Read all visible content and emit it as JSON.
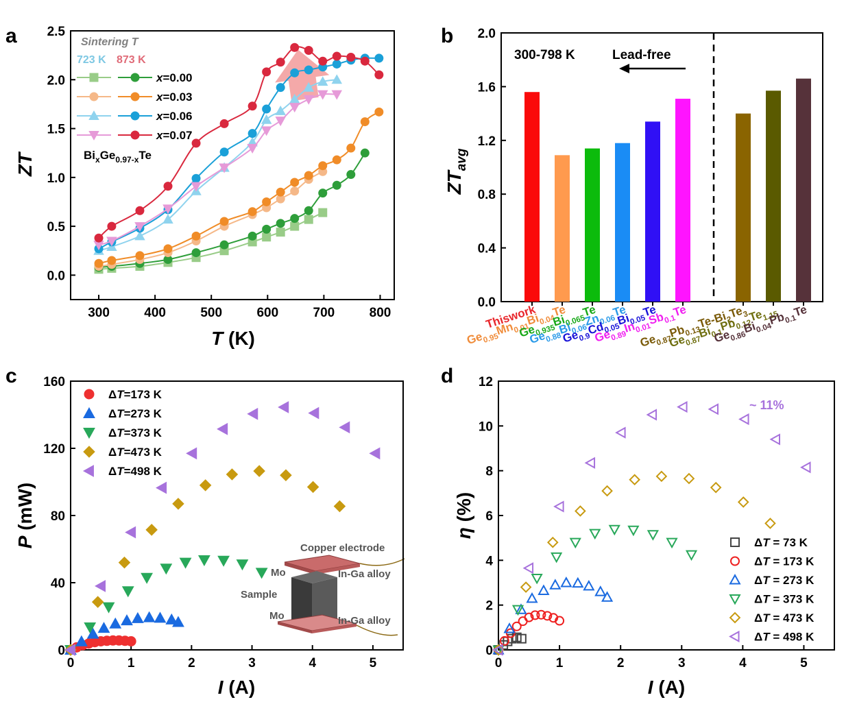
{
  "chart_data": [
    {
      "id": "a",
      "type": "line",
      "panel_label": "a",
      "xlabel": "T (K)",
      "ylabel": "ZT",
      "xlim": [
        250,
        825
      ],
      "ylim": [
        -0.25,
        2.5
      ],
      "xticks": [
        300,
        400,
        500,
        600,
        700,
        800
      ],
      "yticks": [
        0.0,
        0.5,
        1.0,
        1.5,
        2.0,
        2.5
      ],
      "legend_title": "Sintering T",
      "legend_temps": [
        {
          "label": "723 K",
          "color": "#7ec8e3"
        },
        {
          "label": "873 K",
          "color": "#e06b78"
        }
      ],
      "composition_label": "BixGe0.97-xTe",
      "series": [
        {
          "name": "x=0.00",
          "sintering": "723 K",
          "marker": "square",
          "color": "#99cc88",
          "x": [
            300,
            323,
            373,
            423,
            473,
            523,
            573,
            598,
            623,
            648,
            673,
            698
          ],
          "y": [
            0.06,
            0.07,
            0.09,
            0.13,
            0.18,
            0.25,
            0.34,
            0.39,
            0.44,
            0.5,
            0.57,
            0.64
          ]
        },
        {
          "name": "x=0.00",
          "sintering": "873 K",
          "marker": "circle",
          "color": "#2e9e3a",
          "x": [
            300,
            323,
            373,
            423,
            473,
            523,
            573,
            598,
            623,
            648,
            673,
            698,
            723,
            748,
            773
          ],
          "y": [
            0.08,
            0.09,
            0.12,
            0.16,
            0.23,
            0.31,
            0.4,
            0.47,
            0.53,
            0.58,
            0.66,
            0.84,
            0.92,
            1.03,
            1.25
          ]
        },
        {
          "name": "x=0.03",
          "sintering": "723 K",
          "marker": "circle",
          "color": "#f5b888",
          "x": [
            300,
            323,
            373,
            423,
            473,
            523,
            573,
            598,
            623,
            648,
            673,
            698
          ],
          "y": [
            0.09,
            0.11,
            0.16,
            0.23,
            0.35,
            0.5,
            0.62,
            0.69,
            0.78,
            0.86,
            0.98,
            1.06
          ]
        },
        {
          "name": "x=0.03",
          "sintering": "873 K",
          "marker": "circle",
          "color": "#f08c28",
          "x": [
            300,
            323,
            373,
            423,
            473,
            523,
            573,
            598,
            623,
            648,
            673,
            698,
            723,
            748,
            773,
            798
          ],
          "y": [
            0.12,
            0.15,
            0.2,
            0.27,
            0.4,
            0.55,
            0.65,
            0.75,
            0.85,
            0.95,
            1.02,
            1.12,
            1.18,
            1.3,
            1.57,
            1.67
          ]
        },
        {
          "name": "x=0.06",
          "sintering": "723 K",
          "marker": "triangle-up",
          "color": "#8fd3ee",
          "x": [
            300,
            323,
            373,
            423,
            473,
            523,
            573,
            598,
            623,
            648,
            673,
            698,
            723
          ],
          "y": [
            0.25,
            0.29,
            0.4,
            0.57,
            0.86,
            1.1,
            1.36,
            1.59,
            1.68,
            1.8,
            1.92,
            1.98,
            2.0
          ]
        },
        {
          "name": "x=0.06",
          "sintering": "873 K",
          "marker": "circle",
          "color": "#1aa0d8",
          "x": [
            300,
            323,
            373,
            423,
            473,
            523,
            573,
            598,
            623,
            648,
            673,
            698,
            723,
            748,
            773,
            798
          ],
          "y": [
            0.27,
            0.34,
            0.48,
            0.67,
            0.99,
            1.26,
            1.45,
            1.7,
            1.92,
            2.07,
            2.1,
            2.13,
            2.16,
            2.2,
            2.22,
            2.22
          ]
        },
        {
          "name": "x=0.07",
          "sintering": "723 K",
          "marker": "triangle-down",
          "color": "#e69ad8",
          "x": [
            300,
            323,
            373,
            423,
            473,
            523,
            573,
            598,
            623,
            648,
            673,
            698,
            723
          ],
          "y": [
            0.31,
            0.35,
            0.5,
            0.68,
            0.91,
            1.1,
            1.3,
            1.48,
            1.58,
            1.72,
            1.8,
            1.85,
            1.85
          ]
        },
        {
          "name": "x=0.07",
          "sintering": "873 K",
          "marker": "circle",
          "color": "#d9283e",
          "x": [
            300,
            323,
            373,
            423,
            473,
            523,
            573,
            598,
            623,
            648,
            673,
            698,
            723,
            748,
            773,
            798
          ],
          "y": [
            0.38,
            0.5,
            0.66,
            0.91,
            1.35,
            1.55,
            1.73,
            2.08,
            2.18,
            2.33,
            2.3,
            2.19,
            2.24,
            2.23,
            2.19,
            2.05
          ]
        }
      ]
    },
    {
      "id": "b",
      "type": "bar",
      "panel_label": "b",
      "ylabel": "ZTavg",
      "ylim": [
        0,
        2.0
      ],
      "yticks": [
        0.0,
        0.4,
        0.8,
        1.2,
        1.6,
        2.0
      ],
      "annotation_range": "300-798 K",
      "annotation_leadfree": "Lead-free",
      "categories": [
        {
          "label": "This work",
          "value": 1.56,
          "color": "#fa0a0a",
          "text_color": "#e8262b"
        },
        {
          "label": "Ge0.95Mn0.01Bi0.04Te",
          "value": 1.09,
          "color": "#ff9a4e",
          "text_color": "#f08c3a"
        },
        {
          "label": "Ge0.935Bi0.065Te",
          "value": 1.14,
          "color": "#0cbb0c",
          "text_color": "#18a818"
        },
        {
          "label": "Ge0.88Bi0.06Zn0.06Te",
          "value": 1.18,
          "color": "#1a8cf5",
          "text_color": "#2a9ae8"
        },
        {
          "label": "Ge0.9Cd0.05Bi0.05Te",
          "value": 1.34,
          "color": "#3010f5",
          "text_color": "#1a14d8"
        },
        {
          "label": "Ge0.89In0.01Sb0.1Te",
          "value": 1.51,
          "color": "#ff14ff",
          "text_color": "#f020f0"
        },
        {
          "label": "Ge0.87Pb0.13Te-Bi2Te3",
          "value": 1.4,
          "color": "#8a6400",
          "text_color": "#7a5a08"
        },
        {
          "label": "Ge0.87Bi0.1Pb0.12Te1.15",
          "value": 1.57,
          "color": "#5a5a00",
          "text_color": "#6f6f10"
        },
        {
          "label": "Ge0.86Bi0.04Pb0.1Te",
          "value": 1.66,
          "color": "#56323a",
          "text_color": "#56323a"
        }
      ]
    },
    {
      "id": "c",
      "type": "scatter",
      "panel_label": "c",
      "xlabel": "I (A)",
      "ylabel": "P (mW)",
      "xlim": [
        0,
        5.5
      ],
      "ylim": [
        0,
        160
      ],
      "xticks": [
        0,
        1,
        2,
        3,
        4,
        5
      ],
      "yticks": [
        0,
        40,
        80,
        120,
        160
      ],
      "inset_labels": [
        "Copper electrode",
        "Mo",
        "In-Ga alloy",
        "Sample",
        "Mo",
        "In-Ga alloy"
      ],
      "series": [
        {
          "name": "ΔT=173 K",
          "marker": "circle",
          "color": "#ee3030",
          "x": [
            0.0,
            0.1,
            0.2,
            0.3,
            0.4,
            0.5,
            0.6,
            0.7,
            0.8,
            0.9,
            1.0
          ],
          "y": [
            0.0,
            1.5,
            2.8,
            3.8,
            4.6,
            5.1,
            5.4,
            5.6,
            5.6,
            5.4,
            5.1
          ]
        },
        {
          "name": "ΔT=273 K",
          "marker": "triangle-up",
          "color": "#1a6ae0",
          "x": [
            0.0,
            0.18,
            0.37,
            0.55,
            0.74,
            0.93,
            1.11,
            1.3,
            1.48,
            1.67,
            1.78
          ],
          "y": [
            0.0,
            5,
            9.5,
            13,
            15.6,
            17.5,
            18.8,
            19.3,
            19.0,
            18.0,
            16.5
          ]
        },
        {
          "name": "ΔT=373 K",
          "marker": "triangle-down",
          "color": "#28a85a",
          "x": [
            0.0,
            0.32,
            0.63,
            0.95,
            1.26,
            1.58,
            1.9,
            2.21,
            2.53,
            2.84,
            3.16
          ],
          "y": [
            0.0,
            13.5,
            25.5,
            35,
            43,
            48.5,
            52,
            53.5,
            53.2,
            51,
            46
          ]
        },
        {
          "name": "ΔT=473 K",
          "marker": "diamond",
          "color": "#c89a10",
          "x": [
            0.0,
            0.45,
            0.89,
            1.34,
            1.78,
            2.23,
            2.67,
            3.12,
            3.56,
            4.01,
            4.45
          ],
          "y": [
            0.0,
            28.5,
            52,
            71.5,
            87,
            98,
            104.5,
            106.5,
            104,
            97,
            85.5
          ]
        },
        {
          "name": "ΔT=498 K",
          "marker": "triangle-left",
          "color": "#a772dc",
          "x": [
            0.0,
            0.5,
            1.0,
            1.51,
            2.01,
            2.52,
            3.02,
            3.53,
            4.03,
            4.54,
            5.04
          ],
          "y": [
            0.0,
            38,
            70,
            96.5,
            117,
            131.5,
            140.5,
            144.5,
            141,
            132.5,
            117
          ]
        }
      ]
    },
    {
      "id": "d",
      "type": "scatter",
      "panel_label": "d",
      "xlabel": "I (A)",
      "ylabel": "η (%)",
      "xlim": [
        0,
        5.5
      ],
      "ylim": [
        0,
        12
      ],
      "xticks": [
        0,
        1,
        2,
        3,
        4,
        5
      ],
      "yticks": [
        0,
        2,
        4,
        6,
        8,
        10,
        12
      ],
      "annotation": "~ 11%",
      "series": [
        {
          "name": "ΔT = 73 K",
          "marker": "square-open",
          "color": "#444444",
          "x": [
            0.0,
            0.08,
            0.15,
            0.22,
            0.3,
            0.38
          ],
          "y": [
            0.0,
            0.22,
            0.38,
            0.5,
            0.56,
            0.5
          ]
        },
        {
          "name": "ΔT = 173 K",
          "marker": "circle-open",
          "color": "#ee2020",
          "x": [
            0.0,
            0.1,
            0.2,
            0.3,
            0.4,
            0.5,
            0.6,
            0.7,
            0.8,
            0.9,
            1.0
          ],
          "y": [
            0.0,
            0.4,
            0.75,
            1.05,
            1.28,
            1.45,
            1.55,
            1.57,
            1.52,
            1.43,
            1.3
          ]
        },
        {
          "name": "ΔT = 273 K",
          "marker": "triangle-up-open",
          "color": "#1a6ae0",
          "x": [
            0.0,
            0.18,
            0.37,
            0.55,
            0.74,
            0.93,
            1.11,
            1.3,
            1.48,
            1.67,
            1.78
          ],
          "y": [
            0.0,
            0.95,
            1.8,
            2.3,
            2.65,
            2.9,
            3.0,
            2.98,
            2.85,
            2.6,
            2.35
          ]
        },
        {
          "name": "ΔT = 373 K",
          "marker": "triangle-down-open",
          "color": "#28a85a",
          "x": [
            0.0,
            0.32,
            0.63,
            0.95,
            1.26,
            1.58,
            1.9,
            2.21,
            2.53,
            2.84,
            3.16
          ],
          "y": [
            0.0,
            1.8,
            3.2,
            4.15,
            4.8,
            5.2,
            5.38,
            5.35,
            5.15,
            4.8,
            4.25
          ]
        },
        {
          "name": "ΔT = 473 K",
          "marker": "diamond-open",
          "color": "#c89a10",
          "x": [
            0.0,
            0.45,
            0.89,
            1.34,
            1.78,
            2.23,
            2.67,
            3.12,
            3.56,
            4.01,
            4.45
          ],
          "y": [
            0.0,
            2.8,
            4.8,
            6.2,
            7.1,
            7.6,
            7.75,
            7.65,
            7.25,
            6.6,
            5.65
          ]
        },
        {
          "name": "ΔT = 498 K",
          "marker": "triangle-left-open",
          "color": "#a772dc",
          "x": [
            0.0,
            0.5,
            1.0,
            1.51,
            2.01,
            2.52,
            3.02,
            3.53,
            4.03,
            4.54,
            5.04
          ],
          "y": [
            0.0,
            3.65,
            6.4,
            8.35,
            9.7,
            10.5,
            10.85,
            10.75,
            10.3,
            9.4,
            8.15
          ]
        }
      ]
    }
  ]
}
